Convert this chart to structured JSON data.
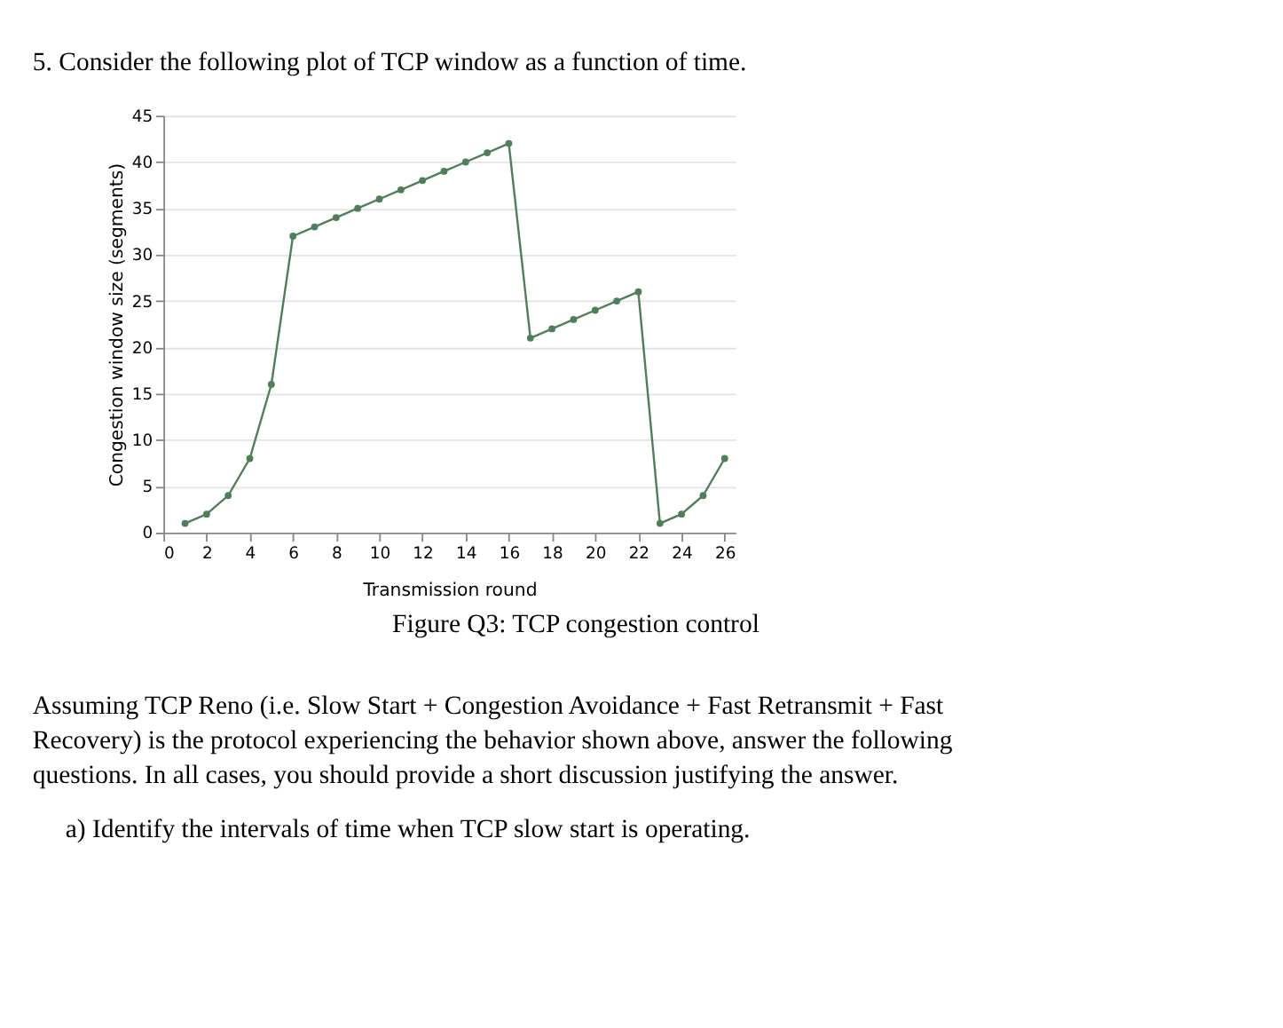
{
  "chart_data": {
    "type": "line",
    "title": "5. Consider the following plot of TCP window as a function of time.",
    "xlabel": "Transmission round",
    "ylabel": "Congestion window size (segments)",
    "x": [
      1,
      2,
      3,
      4,
      5,
      6,
      7,
      8,
      9,
      10,
      11,
      12,
      13,
      14,
      15,
      16,
      17,
      18,
      19,
      20,
      21,
      22,
      23,
      24,
      25,
      26
    ],
    "series": [
      {
        "color": "#4f7f5a",
        "values": [
          1,
          2,
          4,
          8,
          16,
          32,
          33,
          34,
          35,
          36,
          37,
          38,
          39,
          40,
          41,
          42,
          21,
          22,
          23,
          24,
          25,
          26,
          1,
          2,
          4,
          8
        ]
      }
    ],
    "xlim": [
      0,
      26.5
    ],
    "xticks": [
      0,
      2,
      4,
      6,
      8,
      10,
      12,
      14,
      16,
      18,
      20,
      22,
      24,
      26
    ],
    "ylim": [
      0,
      45
    ],
    "yticks": [
      0,
      5,
      10,
      15,
      20,
      25,
      30,
      35,
      40,
      45
    ],
    "grid": "y",
    "marker": "circle",
    "line_style": "solid",
    "annotations": [
      "Figure Q3: TCP congestion control",
      "Assuming TCP Reno (i.e. Slow Start + Congestion Avoidance + Fast Retransmit + Fast Recovery) is the protocol experiencing the behavior shown above, answer the following questions. In all cases, you should provide a short discussion justifying the answer.",
      "a)  Identify the intervals of time when TCP slow start is operating."
    ]
  }
}
